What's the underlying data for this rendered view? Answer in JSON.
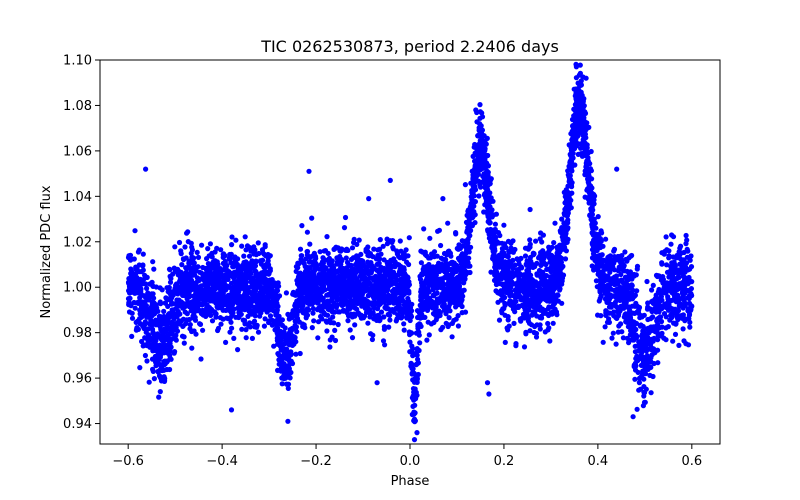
{
  "chart_data": {
    "type": "scatter",
    "title": "TIC 0262530873, period 2.2406 days",
    "xlabel": "Phase",
    "ylabel": "Normalized PDC flux",
    "xlim": [
      -0.66,
      0.66
    ],
    "ylim": [
      0.931,
      1.1
    ],
    "xticks": [
      -0.6,
      -0.4,
      -0.2,
      0.0,
      0.2,
      0.4,
      0.6
    ],
    "xtick_labels": [
      "−0.6",
      "−0.4",
      "−0.2",
      "0.0",
      "0.2",
      "0.4",
      "0.6"
    ],
    "yticks": [
      0.94,
      0.96,
      0.98,
      1.0,
      1.02,
      1.04,
      1.06,
      1.08,
      1.1
    ],
    "ytick_labels": [
      "0.94",
      "0.96",
      "0.98",
      "1.00",
      "1.02",
      "1.04",
      "1.06",
      "1.08",
      "1.10"
    ],
    "grid": false,
    "marker_color": "#0000ff",
    "series": [
      {
        "name": "PDC flux",
        "sample_seed": 262530873,
        "baseline": 1.0,
        "scatter_sigma": 0.009,
        "phase_range": [
          -0.6,
          0.6
        ],
        "features": [
          {
            "kind": "dip",
            "center": -0.265,
            "depth": 0.032,
            "width": 0.014
          },
          {
            "kind": "dip",
            "center": 0.01,
            "depth": 0.05,
            "width": 0.006
          },
          {
            "kind": "dip",
            "center": -0.53,
            "depth": 0.025,
            "width": 0.02
          },
          {
            "kind": "dip",
            "center": 0.5,
            "depth": 0.03,
            "width": 0.02
          },
          {
            "kind": "flare",
            "center": 0.15,
            "height": 0.06,
            "width": 0.018
          },
          {
            "kind": "flare",
            "center": 0.36,
            "height": 0.08,
            "width": 0.02
          }
        ],
        "outliers": [
          {
            "x": -0.563,
            "y": 1.052
          },
          {
            "x": -0.215,
            "y": 1.051
          },
          {
            "x": -0.088,
            "y": 1.039
          },
          {
            "x": -0.042,
            "y": 1.047
          },
          {
            "x": 0.07,
            "y": 1.039
          },
          {
            "x": 0.44,
            "y": 1.052
          },
          {
            "x": -0.38,
            "y": 0.946
          },
          {
            "x": -0.26,
            "y": 0.941
          },
          {
            "x": 0.015,
            "y": 0.936
          },
          {
            "x": 0.005,
            "y": 0.944
          },
          {
            "x": 0.012,
            "y": 0.951
          },
          {
            "x": 0.14,
            "y": 1.078
          },
          {
            "x": 0.375,
            "y": 1.092
          },
          {
            "x": 0.365,
            "y": 1.089
          },
          {
            "x": 0.37,
            "y": 1.083
          },
          {
            "x": 0.168,
            "y": 0.953
          },
          {
            "x": 0.165,
            "y": 0.958
          },
          {
            "x": -0.07,
            "y": 0.958
          },
          {
            "x": 0.475,
            "y": 0.943
          }
        ]
      }
    ]
  }
}
